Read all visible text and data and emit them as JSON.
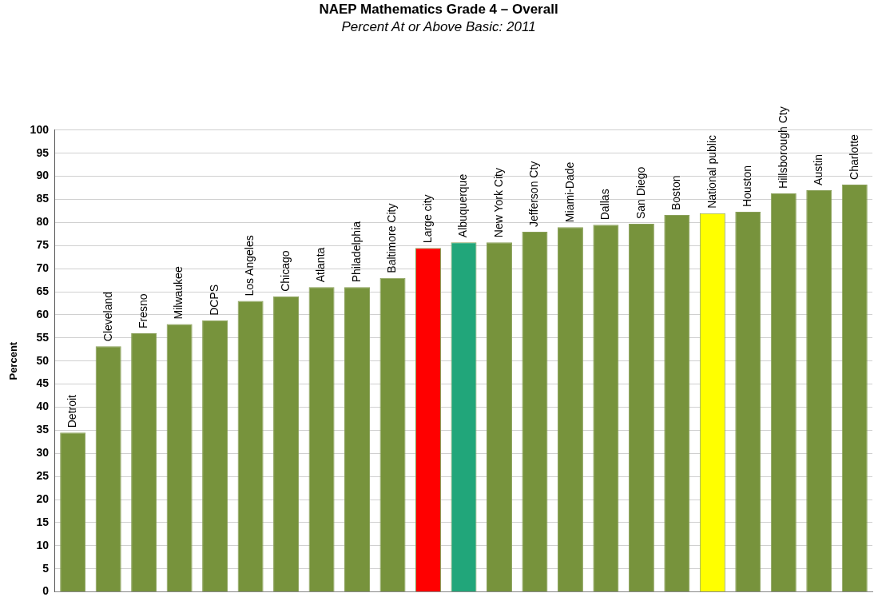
{
  "chart_data": {
    "type": "bar",
    "title": "NAEP Mathematics Grade 4 – Overall",
    "subtitle": "Percent At or Above Basic: 2011",
    "ylabel": "Percent",
    "categories": [
      "Detroit",
      "Cleveland",
      "Fresno",
      "Milwaukee",
      "DCPS",
      "Los Angeles",
      "Chicago",
      "Atlanta",
      "Philadelphia",
      "Baltimore City",
      "Large city",
      "Albuquerque",
      "New York City",
      "Jefferson Cty",
      "Miami-Dade",
      "Dallas",
      "San Diego",
      "Boston",
      "National public",
      "Houston",
      "Hillsborough Cty",
      "Austin",
      "Charlotte"
    ],
    "values": [
      34.5,
      53.2,
      56,
      58,
      58.8,
      63,
      64,
      66,
      66,
      68,
      74.5,
      75.7,
      75.7,
      78,
      79,
      79.5,
      79.7,
      81.6,
      82,
      82.3,
      86.3,
      87,
      88.2
    ],
    "colors": [
      "#77933c",
      "#77933c",
      "#77933c",
      "#77933c",
      "#77933c",
      "#77933c",
      "#77933c",
      "#77933c",
      "#77933c",
      "#77933c",
      "#ff0000",
      "#21a67a",
      "#77933c",
      "#77933c",
      "#77933c",
      "#77933c",
      "#77933c",
      "#77933c",
      "#ffff00",
      "#77933c",
      "#77933c",
      "#77933c",
      "#77933c"
    ],
    "ylim": [
      0,
      100
    ],
    "yticks": [
      0,
      5,
      10,
      15,
      20,
      25,
      30,
      35,
      40,
      45,
      50,
      55,
      60,
      65,
      70,
      75,
      80,
      85,
      90,
      95,
      100
    ],
    "grid": "y",
    "legend": false
  }
}
